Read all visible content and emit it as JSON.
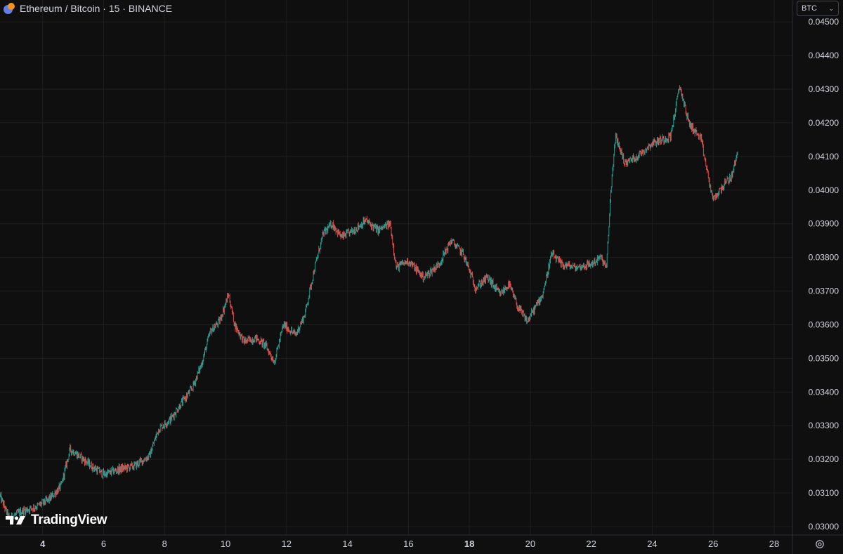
{
  "header": {
    "title": "Ethereum / Bitcoin · 15 · BINANCE"
  },
  "currency_select": {
    "value": "BTC"
  },
  "watermark": {
    "text": "TradingView"
  },
  "icons": {
    "symbol": "eth-btc-pair-icon",
    "chevron": "chevron-down-icon",
    "brand": "tradingview-logo-icon",
    "settings": "gear-icon"
  },
  "colors": {
    "background": "#0f0f0f",
    "grid": "#1e1e1e",
    "up": "#26a69a",
    "down": "#ef5350",
    "text": "#d1d4dc"
  },
  "chart_data": {
    "type": "candlestick",
    "interval": "15",
    "pair": "ETH/BTC",
    "exchange": "BINANCE",
    "x_unit": "day of month",
    "xlim": [
      2.6,
      28.6
    ],
    "ylim": [
      0.02975,
      0.04565
    ],
    "x_ticks": [
      {
        "value": 4,
        "label": "4",
        "bold": true
      },
      {
        "value": 6,
        "label": "6"
      },
      {
        "value": 8,
        "label": "8"
      },
      {
        "value": 10,
        "label": "10"
      },
      {
        "value": 12,
        "label": "12"
      },
      {
        "value": 14,
        "label": "14"
      },
      {
        "value": 16,
        "label": "16"
      },
      {
        "value": 18,
        "label": "18",
        "bold": true
      },
      {
        "value": 20,
        "label": "20"
      },
      {
        "value": 22,
        "label": "22"
      },
      {
        "value": 24,
        "label": "24"
      },
      {
        "value": 26,
        "label": "26"
      },
      {
        "value": 28,
        "label": "28"
      }
    ],
    "y_ticks": [
      {
        "value": 0.045,
        "label": "0.04500"
      },
      {
        "value": 0.044,
        "label": "0.04400"
      },
      {
        "value": 0.043,
        "label": "0.04300"
      },
      {
        "value": 0.042,
        "label": "0.04200"
      },
      {
        "value": 0.041,
        "label": "0.04100"
      },
      {
        "value": 0.04,
        "label": "0.04000"
      },
      {
        "value": 0.039,
        "label": "0.03900"
      },
      {
        "value": 0.038,
        "label": "0.03800"
      },
      {
        "value": 0.037,
        "label": "0.03700"
      },
      {
        "value": 0.036,
        "label": "0.03600"
      },
      {
        "value": 0.035,
        "label": "0.03500"
      },
      {
        "value": 0.034,
        "label": "0.03400"
      },
      {
        "value": 0.033,
        "label": "0.03300"
      },
      {
        "value": 0.032,
        "label": "0.03200"
      },
      {
        "value": 0.031,
        "label": "0.03100"
      },
      {
        "value": 0.03,
        "label": "0.03000"
      }
    ],
    "price_path": [
      [
        2.6,
        0.0309
      ],
      [
        2.9,
        0.03025
      ],
      [
        3.3,
        0.03045
      ],
      [
        3.8,
        0.0306
      ],
      [
        4.2,
        0.0308
      ],
      [
        4.6,
        0.0312
      ],
      [
        4.9,
        0.0323
      ],
      [
        5.2,
        0.0321
      ],
      [
        5.6,
        0.0318
      ],
      [
        6.0,
        0.03155
      ],
      [
        6.5,
        0.0317
      ],
      [
        7.0,
        0.0318
      ],
      [
        7.5,
        0.0321
      ],
      [
        7.8,
        0.0329
      ],
      [
        8.2,
        0.0332
      ],
      [
        8.5,
        0.0336
      ],
      [
        8.9,
        0.0341
      ],
      [
        9.2,
        0.0348
      ],
      [
        9.5,
        0.0358
      ],
      [
        9.8,
        0.0361
      ],
      [
        10.1,
        0.0369
      ],
      [
        10.3,
        0.036
      ],
      [
        10.6,
        0.0355
      ],
      [
        11.0,
        0.0356
      ],
      [
        11.3,
        0.0354
      ],
      [
        11.6,
        0.0349
      ],
      [
        11.9,
        0.036
      ],
      [
        12.3,
        0.0357
      ],
      [
        12.6,
        0.0363
      ],
      [
        12.9,
        0.0376
      ],
      [
        13.2,
        0.0387
      ],
      [
        13.5,
        0.039
      ],
      [
        13.8,
        0.0386
      ],
      [
        14.2,
        0.0388
      ],
      [
        14.6,
        0.0391
      ],
      [
        15.0,
        0.0388
      ],
      [
        15.4,
        0.039
      ],
      [
        15.6,
        0.0377
      ],
      [
        16.0,
        0.0379
      ],
      [
        16.5,
        0.0374
      ],
      [
        17.0,
        0.0378
      ],
      [
        17.4,
        0.0385
      ],
      [
        17.8,
        0.0381
      ],
      [
        18.2,
        0.0371
      ],
      [
        18.6,
        0.0374
      ],
      [
        19.0,
        0.0369
      ],
      [
        19.3,
        0.0372
      ],
      [
        19.6,
        0.0365
      ],
      [
        19.9,
        0.0361
      ],
      [
        20.4,
        0.0369
      ],
      [
        20.7,
        0.0381
      ],
      [
        21.0,
        0.0378
      ],
      [
        21.5,
        0.0377
      ],
      [
        22.0,
        0.0378
      ],
      [
        22.3,
        0.038
      ],
      [
        22.5,
        0.0377
      ],
      [
        22.65,
        0.0401
      ],
      [
        22.8,
        0.0416
      ],
      [
        23.1,
        0.0408
      ],
      [
        23.5,
        0.041
      ],
      [
        24.0,
        0.0414
      ],
      [
        24.6,
        0.0416
      ],
      [
        24.9,
        0.0431
      ],
      [
        25.2,
        0.042
      ],
      [
        25.6,
        0.0415
      ],
      [
        25.9,
        0.0401
      ],
      [
        26.0,
        0.0397
      ],
      [
        26.3,
        0.0401
      ],
      [
        26.6,
        0.0404
      ],
      [
        26.8,
        0.0411
      ]
    ]
  }
}
